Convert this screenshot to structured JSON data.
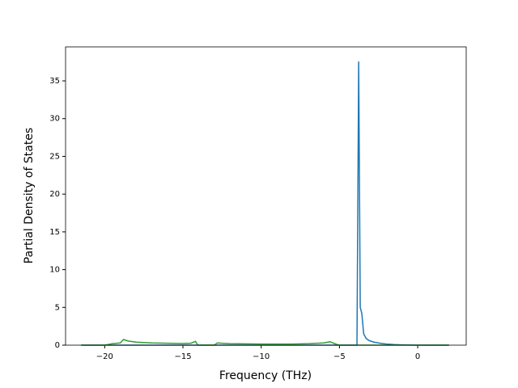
{
  "chart_data": {
    "type": "line",
    "x_label": "Frequency (THz)",
    "y_label": "Partial Density of States",
    "xlim": [
      -22.5,
      3.1
    ],
    "ylim": [
      0,
      39.5
    ],
    "xticks": [
      {
        "value": -20,
        "label": "−20"
      },
      {
        "value": -15,
        "label": "−15"
      },
      {
        "value": -10,
        "label": "−10"
      },
      {
        "value": -5,
        "label": "−5"
      },
      0
    ],
    "yticks": [
      0,
      5,
      10,
      15,
      20,
      25,
      30,
      35
    ],
    "series": [
      {
        "color": "#1f77b4",
        "x": [
          -21.5,
          -10,
          -3.9,
          -3.88,
          -3.77,
          -3.67,
          -3.57,
          -3.45,
          -3.3,
          -3.1,
          -2.8,
          -2.4,
          -2,
          -1.5,
          -1,
          0,
          2
        ],
        "values": [
          0,
          0,
          0,
          0,
          37.5,
          5,
          4.2,
          1.5,
          0.9,
          0.6,
          0.4,
          0.25,
          0.15,
          0.08,
          0.04,
          0,
          0
        ]
      },
      {
        "color": "#2ca02c",
        "x": [
          -21.5,
          -20,
          -19.5,
          -19,
          -18.8,
          -18.5,
          -18,
          -17,
          -16,
          -15,
          -14.5,
          -14.2,
          -14.05,
          -13.9,
          -13,
          -12.8,
          -12.5,
          -12,
          -10,
          -8,
          -7,
          -6,
          -5.6,
          -5.3,
          -5.1,
          -5,
          2
        ],
        "values": [
          0,
          0,
          0.2,
          0.3,
          0.75,
          0.55,
          0.4,
          0.3,
          0.25,
          0.22,
          0.25,
          0.5,
          0,
          0,
          0,
          0.3,
          0.25,
          0.2,
          0.15,
          0.15,
          0.2,
          0.3,
          0.45,
          0.2,
          0.05,
          0,
          0
        ]
      }
    ]
  }
}
